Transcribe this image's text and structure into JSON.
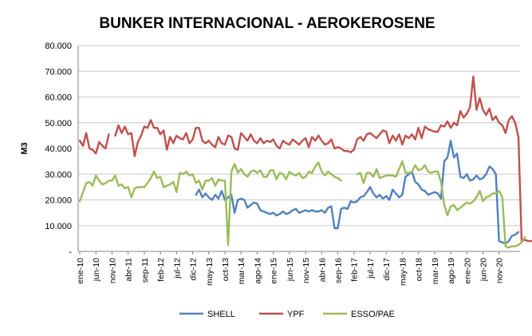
{
  "chart_data": {
    "type": "line",
    "title": "BUNKER INTERNACIONAL - AEROKEROSENE",
    "xlabel": "",
    "ylabel": "M3",
    "ylim": [
      0,
      80000
    ],
    "yticks": [
      0,
      10000,
      20000,
      30000,
      40000,
      50000,
      60000,
      70000,
      80000
    ],
    "ytick_labels": [
      "-",
      "10.000",
      "20.000",
      "30.000",
      "40.000",
      "50.000",
      "60.000",
      "70.000",
      "80.000"
    ],
    "x_categories_labeled": [
      "ene-10",
      "jun-10",
      "nov-10",
      "abr-11",
      "sep-11",
      "feb-12",
      "jul-12",
      "dic-12",
      "may-13",
      "oct-13",
      "mar-14",
      "ago-14",
      "ene-15",
      "jun-15",
      "nov-15",
      "abr-16",
      "sep-16",
      "feb-17",
      "jul-17",
      "dic-17",
      "may-18",
      "oct-18",
      "mar-19",
      "ago-19",
      "ene-20",
      "jun-20",
      "nov-20"
    ],
    "x_period": "monthly ene-10 to nov-20",
    "grid": true,
    "legend_position": "bottom",
    "series": [
      {
        "name": "SHELL",
        "color": "#4f81bd",
        "values": [
          null,
          null,
          null,
          null,
          null,
          null,
          null,
          null,
          null,
          null,
          null,
          null,
          null,
          null,
          null,
          null,
          null,
          null,
          null,
          null,
          null,
          null,
          null,
          null,
          null,
          null,
          null,
          null,
          null,
          null,
          null,
          null,
          null,
          null,
          null,
          null,
          22000,
          24000,
          21000,
          22500,
          21000,
          20000,
          22000,
          20500,
          23500,
          20000,
          21000,
          22000,
          15000,
          20000,
          20500,
          20000,
          17000,
          18000,
          19000,
          18500,
          16000,
          15500,
          15000,
          14500,
          15000,
          14000,
          14500,
          15500,
          14500,
          15000,
          16000,
          16500,
          15000,
          15500,
          16000,
          15500,
          16000,
          15500,
          15500,
          16000,
          15000,
          17000,
          17500,
          9000,
          9000,
          16500,
          17000,
          16500,
          19500,
          19000,
          19500,
          21000,
          21500,
          23000,
          25000,
          22500,
          21000,
          22000,
          20500,
          21500,
          20000,
          24000,
          22500,
          21000,
          22000,
          29000,
          30000,
          31000,
          27000,
          26000,
          24000,
          23500,
          22000,
          22500,
          23000,
          22500,
          20500,
          35000,
          36500,
          43000,
          36500,
          38000,
          29000,
          28500,
          30000,
          27500,
          28000,
          29500,
          28000,
          28500,
          30000,
          33000,
          32000,
          30000,
          4000,
          3500,
          3000,
          4000,
          6000,
          6500,
          7500
        ]
      },
      {
        "name": "YPF",
        "color": "#c0504d",
        "values": [
          43000,
          41000,
          46000,
          40000,
          39500,
          38000,
          42500,
          41000,
          40000,
          45500,
          null,
          45000,
          49000,
          46000,
          48500,
          45500,
          46000,
          37000,
          42500,
          45000,
          48500,
          48000,
          51000,
          48000,
          48000,
          45500,
          47000,
          39500,
          44500,
          42000,
          45000,
          44000,
          43500,
          46000,
          42000,
          43500,
          48000,
          48000,
          43000,
          42000,
          43000,
          41500,
          40500,
          44500,
          42000,
          41500,
          45000,
          44500,
          40000,
          39500,
          46000,
          44500,
          43000,
          45500,
          43000,
          42000,
          44000,
          42000,
          43000,
          42500,
          43500,
          41000,
          40000,
          43000,
          42000,
          41500,
          43500,
          42500,
          41500,
          43000,
          44000,
          40500,
          44500,
          43000,
          45000,
          43000,
          41500,
          42000,
          43500,
          40000,
          40500,
          40000,
          39000,
          39000,
          38500,
          39500,
          43500,
          44500,
          43000,
          45500,
          46000,
          45000,
          44000,
          45500,
          47000,
          46500,
          42000,
          45000,
          43000,
          45500,
          41500,
          45000,
          44000,
          45500,
          43500,
          48000,
          44000,
          48500,
          47500,
          47000,
          46500,
          46500,
          49000,
          48500,
          50500,
          48000,
          50000,
          49000,
          54500,
          52000,
          53500,
          56000,
          68000,
          55000,
          59500,
          55000,
          53000,
          55500,
          51000,
          52500,
          50000,
          49000,
          46000,
          51000,
          52500,
          50000,
          44500,
          4000,
          4500,
          4000,
          4000,
          4500,
          5000,
          6000
        ]
      },
      {
        "name": "ESSO/PAE",
        "color": "#9bbb59",
        "values": [
          19500,
          23000,
          26500,
          27000,
          25500,
          29500,
          27500,
          26000,
          26500,
          27500,
          27500,
          29500,
          25500,
          26000,
          24500,
          25000,
          21000,
          24500,
          25000,
          25000,
          25000,
          26500,
          28500,
          31000,
          28500,
          29000,
          25000,
          25500,
          26000,
          27000,
          23000,
          30500,
          30000,
          31000,
          29500,
          30000,
          26500,
          27500,
          24000,
          27500,
          27500,
          28500,
          25500,
          28000,
          27500,
          27500,
          2500,
          31000,
          34000,
          30500,
          32000,
          30000,
          29000,
          31000,
          31500,
          30500,
          31500,
          29000,
          29000,
          31500,
          31500,
          28000,
          30500,
          30000,
          28000,
          31000,
          30000,
          29500,
          30500,
          28500,
          29000,
          31000,
          30500,
          33000,
          34500,
          31000,
          29500,
          31000,
          30000,
          29000,
          28500,
          27500,
          null,
          null,
          null,
          null,
          30000,
          30500,
          26500,
          30500,
          30500,
          29000,
          32000,
          28500,
          29000,
          29500,
          29500,
          29500,
          29000,
          32000,
          35000,
          30500,
          30500,
          31000,
          33500,
          31500,
          32000,
          33500,
          31000,
          30500,
          31000,
          31000,
          27000,
          18000,
          14000,
          17500,
          18000,
          16000,
          17000,
          18000,
          19000,
          18500,
          19500,
          21000,
          23500,
          19500,
          21000,
          21500,
          22500,
          22500,
          23500,
          21000,
          2000,
          1500,
          2000,
          2000,
          2500,
          3500,
          5500
        ]
      }
    ]
  }
}
